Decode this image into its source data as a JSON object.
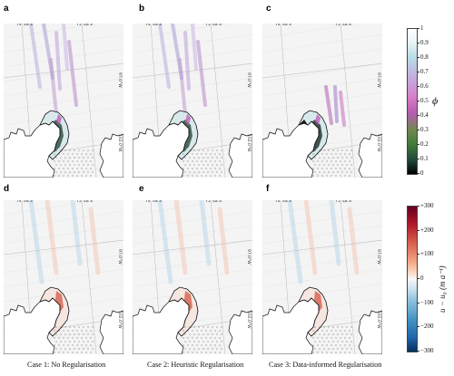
{
  "panels": [
    {
      "label": "a",
      "type": "phi",
      "lat_labels": [
        "74°48'S",
        "75°48'S"
      ],
      "lon_labels": [
        "97.0°W",
        "102.0°W"
      ]
    },
    {
      "label": "b",
      "type": "phi",
      "lat_labels": [
        "74°48'S",
        "75°48'S"
      ],
      "lon_labels": [
        "97.0°W",
        "102.0°W"
      ]
    },
    {
      "label": "c",
      "type": "phi",
      "lat_labels": [
        "74°48'S",
        "75°48'S"
      ],
      "lon_labels": [
        "97.0°W",
        "102.0°W"
      ]
    },
    {
      "label": "d",
      "type": "velocity",
      "lat_labels": [
        "74°48'S",
        "75°48'S"
      ],
      "lon_labels": [
        "97.0°W",
        "102.0°W"
      ]
    },
    {
      "label": "e",
      "type": "velocity",
      "lat_labels": [
        "74°48'S",
        "75°48'S"
      ],
      "lon_labels": [
        "97.0°W",
        "102.0°W"
      ]
    },
    {
      "label": "f",
      "type": "velocity",
      "lat_labels": [
        "74°48'S",
        "75°48'S"
      ],
      "lon_labels": [
        "97.0°W",
        "102.0°W"
      ]
    }
  ],
  "captions": [
    "Case 1: No Regularisation",
    "Case 2: Heuristic Regularisation",
    "Case 3: Data-informed Regularisation"
  ],
  "colorbar_phi": {
    "title": "ϕ",
    "ticks": [
      "1",
      "0.9",
      "0.8",
      "0.7",
      "0.6",
      "0.5",
      "0.4",
      "0.3",
      "0.2",
      "0.1",
      "0"
    ],
    "range": [
      0,
      1
    ]
  },
  "colorbar_velocity": {
    "title": "u − u₀ (m a⁻¹)",
    "ticks": [
      "+300",
      "+200",
      "+100",
      "0",
      "−100",
      "−200",
      "−300"
    ],
    "range": [
      -300,
      300
    ]
  }
}
